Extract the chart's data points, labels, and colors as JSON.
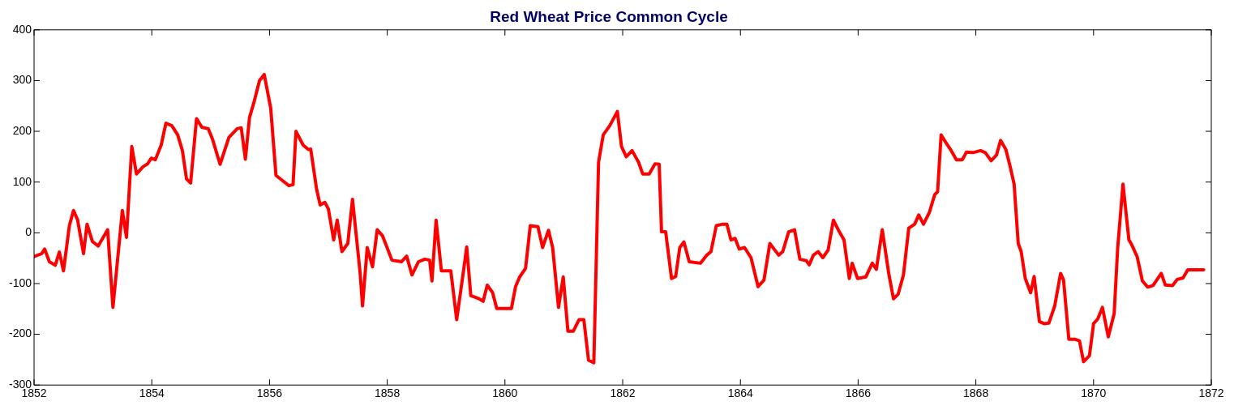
{
  "chart_data": {
    "type": "line",
    "title": "Red Wheat Price Common Cycle",
    "xlim": [
      1852,
      1872
    ],
    "xticks": [
      1852,
      1854,
      1856,
      1858,
      1860,
      1862,
      1864,
      1866,
      1868,
      1870,
      1872
    ],
    "ylim": [
      -300,
      400
    ],
    "yticks": [
      -300,
      -200,
      -100,
      0,
      100,
      200,
      300,
      400
    ],
    "grid": false,
    "legend": false,
    "marker": "none",
    "line_style": "solid",
    "series": [
      {
        "color": "#ff0000",
        "x": [
          1852.0,
          1852.13,
          1852.18,
          1852.26,
          1852.36,
          1852.43,
          1852.5,
          1852.6,
          1852.67,
          1852.74,
          1852.84,
          1852.9,
          1852.99,
          1853.09,
          1853.25,
          1853.34,
          1853.5,
          1853.57,
          1853.66,
          1853.74,
          1853.85,
          1853.93,
          1853.99,
          1854.06,
          1854.16,
          1854.24,
          1854.34,
          1854.44,
          1854.52,
          1854.59,
          1854.66,
          1854.76,
          1854.85,
          1854.96,
          1855.03,
          1855.16,
          1855.31,
          1855.45,
          1855.52,
          1855.59,
          1855.66,
          1855.74,
          1855.83,
          1855.91,
          1856.02,
          1856.11,
          1856.24,
          1856.33,
          1856.4,
          1856.45,
          1856.57,
          1856.66,
          1856.7,
          1856.8,
          1856.86,
          1856.94,
          1857.0,
          1857.09,
          1857.15,
          1857.23,
          1857.33,
          1857.41,
          1857.54,
          1857.58,
          1857.66,
          1857.75,
          1857.83,
          1857.92,
          1858.08,
          1858.24,
          1858.33,
          1858.42,
          1858.53,
          1858.64,
          1858.72,
          1858.76,
          1858.83,
          1858.92,
          1859.03,
          1859.08,
          1859.18,
          1859.31,
          1859.35,
          1859.42,
          1859.56,
          1859.63,
          1859.7,
          1859.79,
          1859.86,
          1860.04,
          1860.11,
          1860.18,
          1860.25,
          1860.32,
          1860.35,
          1860.43,
          1860.56,
          1860.64,
          1860.74,
          1860.81,
          1860.91,
          1860.99,
          1861.07,
          1861.16,
          1861.26,
          1861.34,
          1861.42,
          1861.51,
          1861.59,
          1861.67,
          1861.78,
          1861.91,
          1861.98,
          1862.06,
          1862.16,
          1862.27,
          1862.34,
          1862.45,
          1862.55,
          1862.62,
          1862.66,
          1862.73,
          1862.83,
          1862.9,
          1862.97,
          1863.04,
          1863.13,
          1863.32,
          1863.43,
          1863.5,
          1863.59,
          1863.7,
          1863.77,
          1863.84,
          1863.91,
          1863.98,
          1864.07,
          1864.18,
          1864.3,
          1864.4,
          1864.5,
          1864.65,
          1864.72,
          1864.82,
          1864.92,
          1865.01,
          1865.12,
          1865.17,
          1865.24,
          1865.32,
          1865.4,
          1865.49,
          1865.58,
          1865.68,
          1865.76,
          1865.85,
          1865.9,
          1865.99,
          1866.13,
          1866.24,
          1866.31,
          1866.41,
          1866.52,
          1866.6,
          1866.68,
          1866.77,
          1866.86,
          1866.96,
          1867.03,
          1867.11,
          1867.21,
          1867.3,
          1867.35,
          1867.41,
          1867.49,
          1867.57,
          1867.67,
          1867.77,
          1867.84,
          1867.95,
          1868.08,
          1868.16,
          1868.26,
          1868.35,
          1868.42,
          1868.51,
          1868.58,
          1868.65,
          1868.72,
          1868.77,
          1868.84,
          1868.93,
          1868.99,
          1869.08,
          1869.16,
          1869.24,
          1869.34,
          1869.44,
          1869.49,
          1869.58,
          1869.69,
          1869.76,
          1869.83,
          1869.93,
          1870.0,
          1870.07,
          1870.15,
          1870.25,
          1870.35,
          1870.41,
          1870.5,
          1870.6,
          1870.65,
          1870.74,
          1870.83,
          1870.92,
          1871.01,
          1871.15,
          1871.22,
          1871.34,
          1871.42,
          1871.52,
          1871.6,
          1871.87
        ],
        "values": [
          -47,
          -41,
          -32,
          -57,
          -64,
          -38,
          -75,
          14,
          44,
          25,
          -41,
          17,
          -17,
          -26,
          6,
          -147,
          44,
          -9,
          170,
          116,
          130,
          136,
          147,
          144,
          173,
          216,
          211,
          193,
          162,
          106,
          98,
          225,
          208,
          205,
          185,
          135,
          188,
          205,
          207,
          145,
          227,
          259,
          300,
          312,
          246,
          113,
          101,
          93,
          95,
          200,
          173,
          164,
          165,
          86,
          55,
          60,
          47,
          -14,
          25,
          -37,
          -21,
          66,
          -80,
          -144,
          -29,
          -67,
          6,
          -6,
          -54,
          -57,
          -46,
          -83,
          -57,
          -52,
          -54,
          -95,
          25,
          -75,
          -75,
          -75,
          -171,
          -63,
          -28,
          -124,
          -130,
          -135,
          -103,
          -118,
          -149,
          -149,
          -149,
          -106,
          -87,
          -75,
          -70,
          14,
          12,
          -29,
          5,
          -29,
          -147,
          -87,
          -194,
          -194,
          -171,
          -171,
          -251,
          -256,
          139,
          193,
          211,
          239,
          170,
          150,
          162,
          139,
          116,
          116,
          136,
          135,
          2,
          2,
          -90,
          -86,
          -29,
          -18,
          -57,
          -60,
          -44,
          -37,
          14,
          17,
          17,
          -14,
          -11,
          -32,
          -29,
          -49,
          -106,
          -93,
          -21,
          -44,
          -37,
          2,
          6,
          -52,
          -55,
          -63,
          -44,
          -37,
          -49,
          -34,
          25,
          2,
          -14,
          -90,
          -60,
          -90,
          -87,
          -60,
          -72,
          6,
          -80,
          -130,
          -121,
          -83,
          9,
          17,
          35,
          17,
          40,
          75,
          81,
          193,
          178,
          164,
          144,
          144,
          159,
          158,
          162,
          158,
          142,
          153,
          182,
          164,
          132,
          96,
          -21,
          -37,
          -90,
          -118,
          -86,
          -175,
          -179,
          -178,
          -144,
          -80,
          -93,
          -210,
          -210,
          -213,
          -254,
          -242,
          -179,
          -170,
          -147,
          -205,
          -159,
          -29,
          96,
          -14,
          -24,
          -47,
          -95,
          -107,
          -104,
          -80,
          -103,
          -104,
          -92,
          -89,
          -73,
          -73
        ]
      }
    ]
  }
}
